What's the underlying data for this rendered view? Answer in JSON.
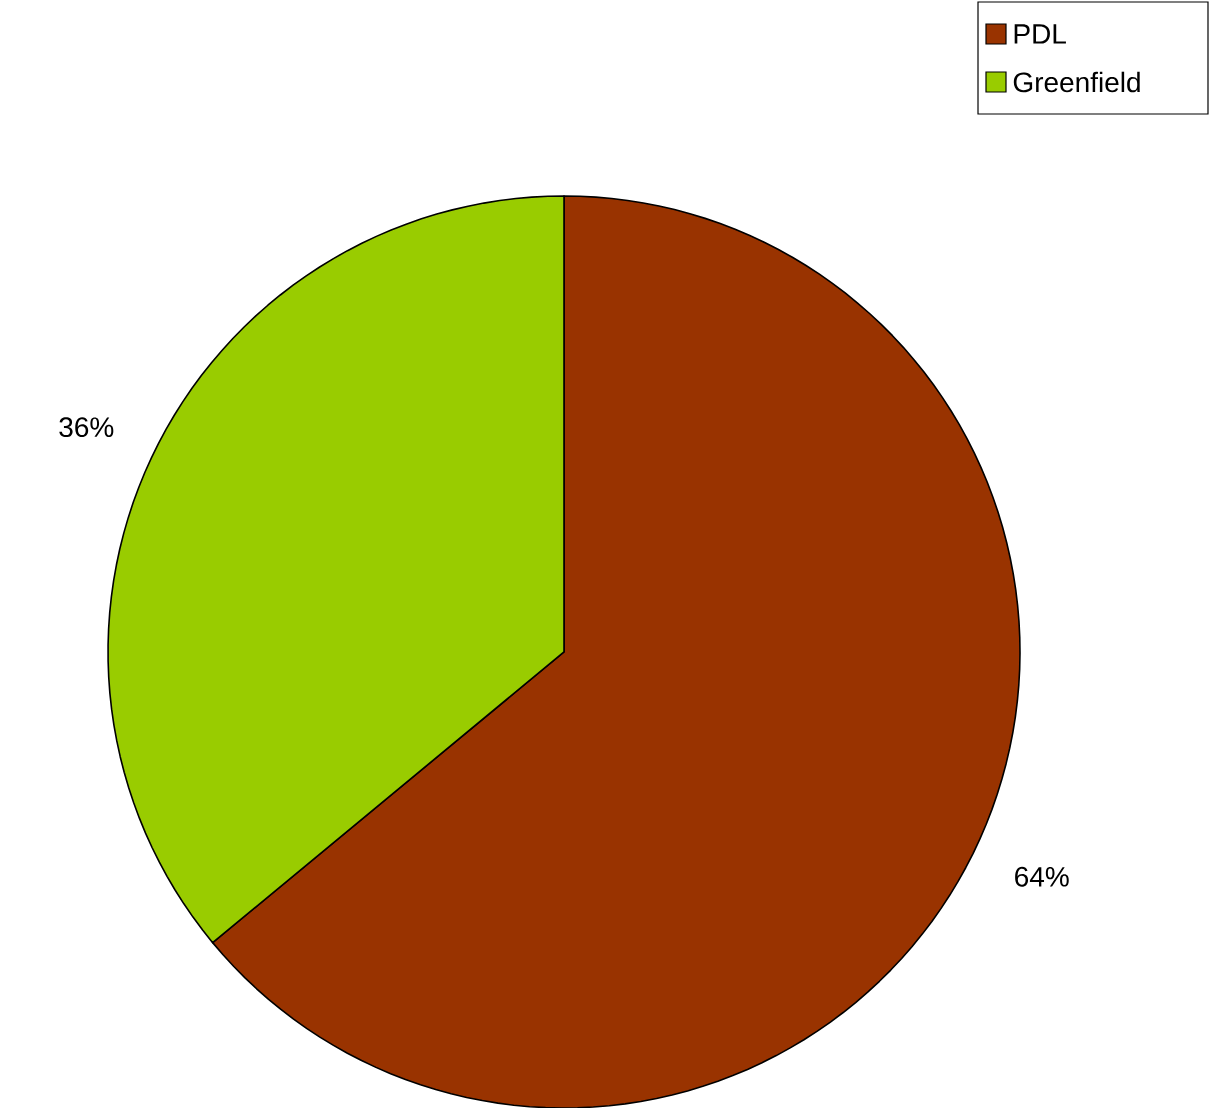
{
  "chart_data": {
    "type": "pie",
    "categories": [
      "PDL",
      "Greenfield"
    ],
    "values": [
      64,
      36
    ],
    "colors": [
      "#993300",
      "#99cc00"
    ],
    "value_labels": [
      "64%",
      "36%"
    ],
    "legend": "top right"
  }
}
